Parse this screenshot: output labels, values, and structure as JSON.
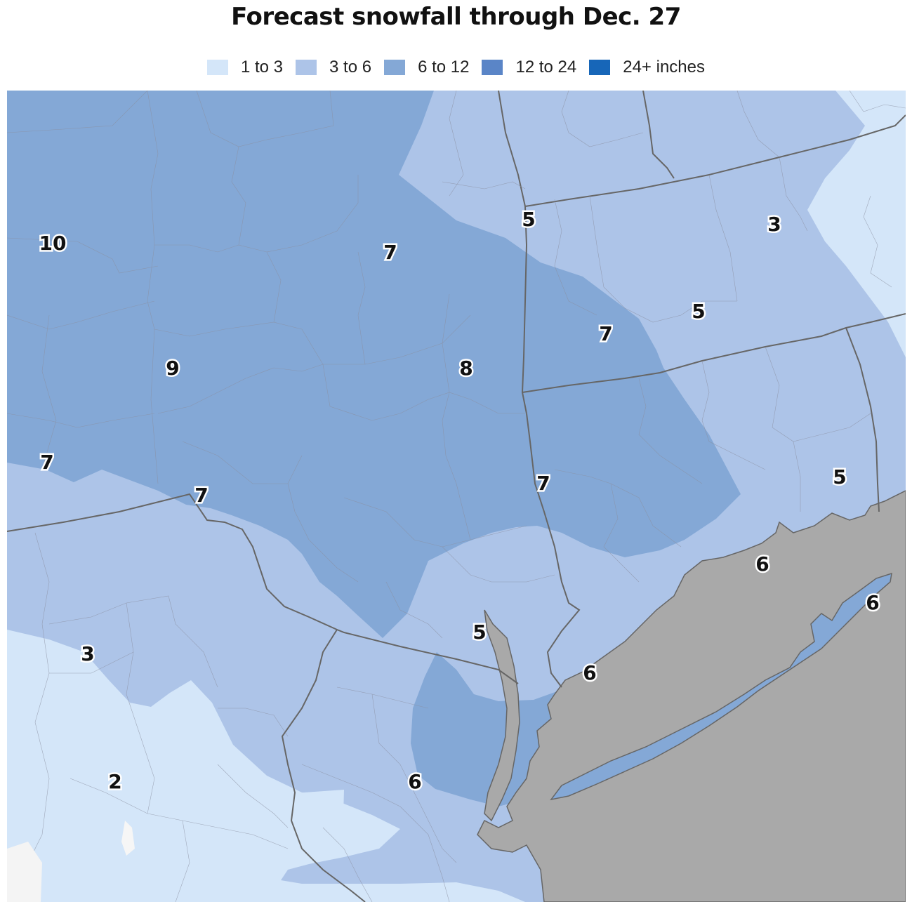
{
  "title": "Forecast snowfall through Dec. 27",
  "legend": [
    {
      "label": "1 to 3",
      "color": "#d4e6f9"
    },
    {
      "label": "3 to 6",
      "color": "#adc4e8"
    },
    {
      "label": "6 to 12",
      "color": "#84a8d6"
    },
    {
      "label": "12 to 24",
      "color": "#5a85c7"
    },
    {
      "label": "24+ inches",
      "color": "#1766b8"
    }
  ],
  "colors": {
    "water": "#a9a9a9",
    "state_border": "#666666",
    "county_border": "#8a8fa0"
  },
  "labels": [
    {
      "id": "label-1",
      "text": "10"
    },
    {
      "id": "label-2",
      "text": "7"
    },
    {
      "id": "label-3",
      "text": "5"
    },
    {
      "id": "label-4",
      "text": "3"
    },
    {
      "id": "label-5",
      "text": "9"
    },
    {
      "id": "label-6",
      "text": "8"
    },
    {
      "id": "label-7",
      "text": "5"
    },
    {
      "id": "label-8",
      "text": "7"
    },
    {
      "id": "label-9",
      "text": "7"
    },
    {
      "id": "label-10",
      "text": "7"
    },
    {
      "id": "label-11",
      "text": "7"
    },
    {
      "id": "label-12",
      "text": "5"
    },
    {
      "id": "label-13",
      "text": "6"
    },
    {
      "id": "label-14",
      "text": "6"
    },
    {
      "id": "label-15",
      "text": "3"
    },
    {
      "id": "label-16",
      "text": "5"
    },
    {
      "id": "label-17",
      "text": "6"
    },
    {
      "id": "label-18",
      "text": "2"
    },
    {
      "id": "label-19",
      "text": "6"
    }
  ]
}
